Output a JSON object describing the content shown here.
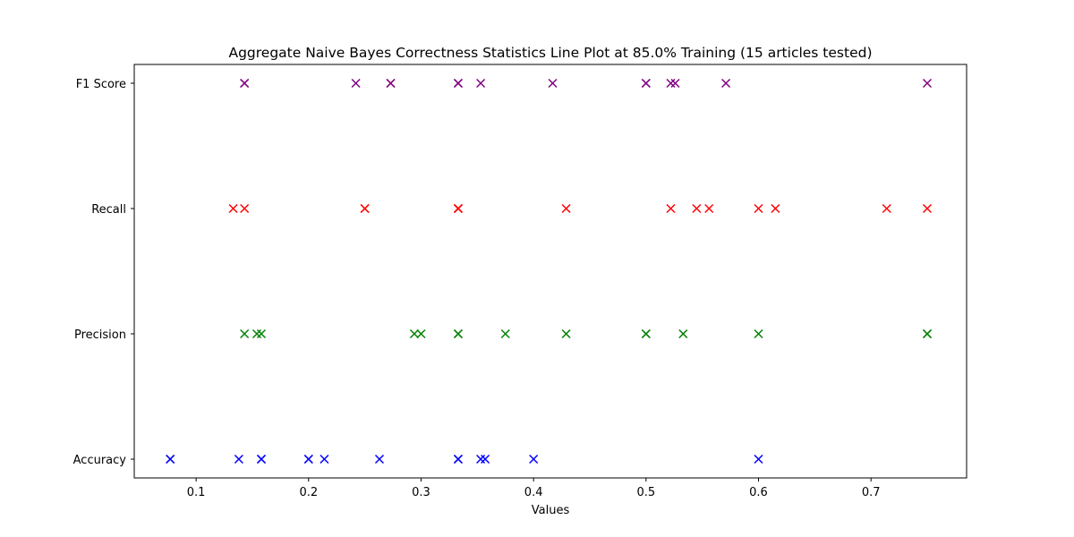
{
  "chart_data": {
    "type": "scatter",
    "title": "Aggregate Naive Bayes Correctness Statistics Line Plot at 85.0% Training (15 articles tested)",
    "xlabel": "Values",
    "ylabel": "",
    "xlim": [
      0.045,
      0.785
    ],
    "xticks": [
      0.1,
      0.2,
      0.3,
      0.4,
      0.5,
      0.6,
      0.7
    ],
    "xtick_labels": [
      "0.1",
      "0.2",
      "0.3",
      "0.4",
      "0.5",
      "0.6",
      "0.7"
    ],
    "categories": [
      "Accuracy",
      "Precision",
      "Recall",
      "F1 Score"
    ],
    "marker": "x",
    "grid": false,
    "series": [
      {
        "name": "Accuracy",
        "color": "#0000ff",
        "values": [
          0.077,
          0.077,
          0.138,
          0.158,
          0.158,
          0.2,
          0.2,
          0.214,
          0.263,
          0.333,
          0.333,
          0.353,
          0.357,
          0.4,
          0.6
        ]
      },
      {
        "name": "Precision",
        "color": "#008000",
        "values": [
          0.143,
          0.154,
          0.158,
          0.294,
          0.3,
          0.333,
          0.333,
          0.375,
          0.429,
          0.5,
          0.5,
          0.533,
          0.6,
          0.75,
          0.75
        ]
      },
      {
        "name": "Recall",
        "color": "#ff0000",
        "values": [
          0.133,
          0.143,
          0.25,
          0.25,
          0.333,
          0.333,
          0.333,
          0.429,
          0.522,
          0.545,
          0.556,
          0.6,
          0.615,
          0.714,
          0.75
        ]
      },
      {
        "name": "F1 Score",
        "color": "#800080",
        "values": [
          0.143,
          0.143,
          0.242,
          0.273,
          0.273,
          0.333,
          0.333,
          0.353,
          0.417,
          0.5,
          0.5,
          0.522,
          0.526,
          0.571,
          0.75
        ]
      }
    ]
  }
}
